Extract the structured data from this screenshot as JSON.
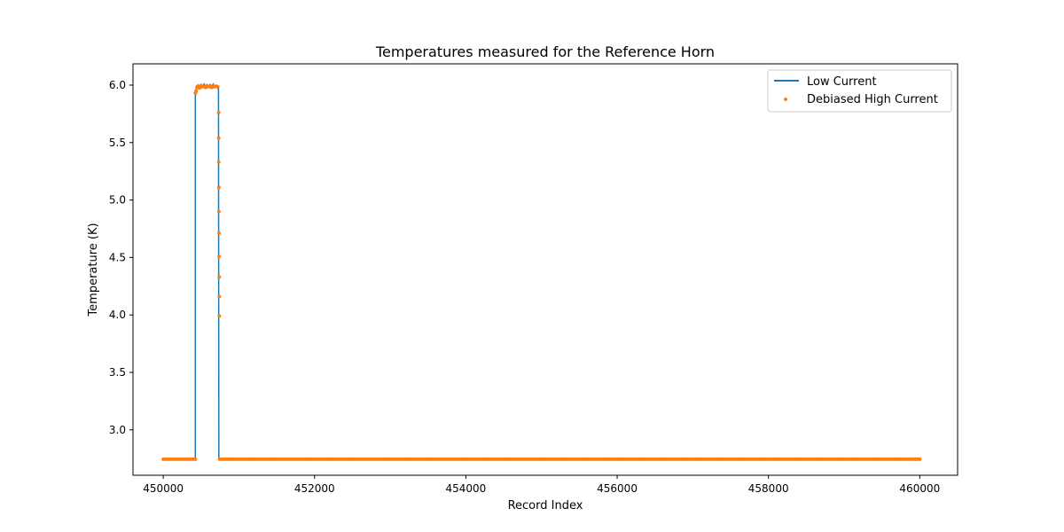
{
  "chart_data": {
    "type": "line",
    "title": "Temperatures measured for the Reference Horn",
    "xlabel": "Record Index",
    "ylabel": "Temperature (K)",
    "xlim": [
      449600,
      460500
    ],
    "ylim": [
      2.605,
      6.185
    ],
    "xticks": [
      450000,
      452000,
      454000,
      456000,
      458000,
      460000
    ],
    "yticks": [
      3.0,
      3.5,
      4.0,
      4.5,
      5.0,
      5.5,
      6.0
    ],
    "grid": false,
    "legend_position": "top-right",
    "series": [
      {
        "name": "Low Current",
        "style": "line",
        "color": "#1f77b4",
        "points": [
          [
            450000,
            2.745
          ],
          [
            450424,
            2.745
          ],
          [
            450424,
            5.9
          ],
          [
            450440,
            5.99
          ],
          [
            450450,
            5.985
          ],
          [
            450460,
            6.0
          ],
          [
            450480,
            5.985
          ],
          [
            450500,
            6.005
          ],
          [
            450520,
            5.98
          ],
          [
            450540,
            6.01
          ],
          [
            450560,
            5.99
          ],
          [
            450580,
            6.0
          ],
          [
            450600,
            5.98
          ],
          [
            450620,
            6.005
          ],
          [
            450640,
            5.985
          ],
          [
            450660,
            6.01
          ],
          [
            450680,
            5.99
          ],
          [
            450700,
            6.0
          ],
          [
            450720,
            5.975
          ],
          [
            450730,
            5.99
          ],
          [
            450735,
            2.745
          ],
          [
            460000,
            2.745
          ]
        ]
      },
      {
        "name": "Debiased High Current",
        "style": "scatter",
        "color": "#ff7f0e",
        "points": [
          [
            450000,
            2.745
          ],
          [
            450424,
            2.745
          ],
          [
            450425,
            5.93
          ],
          [
            450435,
            5.95
          ],
          [
            450445,
            5.98
          ],
          [
            450460,
            5.99
          ],
          [
            450480,
            5.975
          ],
          [
            450500,
            5.995
          ],
          [
            450520,
            5.985
          ],
          [
            450540,
            5.99
          ],
          [
            450560,
            5.98
          ],
          [
            450580,
            5.995
          ],
          [
            450600,
            5.985
          ],
          [
            450620,
            5.99
          ],
          [
            450640,
            5.98
          ],
          [
            450660,
            5.995
          ],
          [
            450680,
            5.985
          ],
          [
            450700,
            5.99
          ],
          [
            450720,
            5.985
          ],
          [
            450732,
            5.76
          ],
          [
            450733,
            5.54
          ],
          [
            450734,
            5.33
          ],
          [
            450735,
            5.11
          ],
          [
            450736,
            4.9
          ],
          [
            450737,
            4.71
          ],
          [
            450738,
            4.51
          ],
          [
            450739,
            4.33
          ],
          [
            450740,
            4.16
          ],
          [
            450741,
            3.99
          ],
          [
            450745,
            2.745
          ],
          [
            460000,
            2.745
          ]
        ]
      }
    ]
  }
}
